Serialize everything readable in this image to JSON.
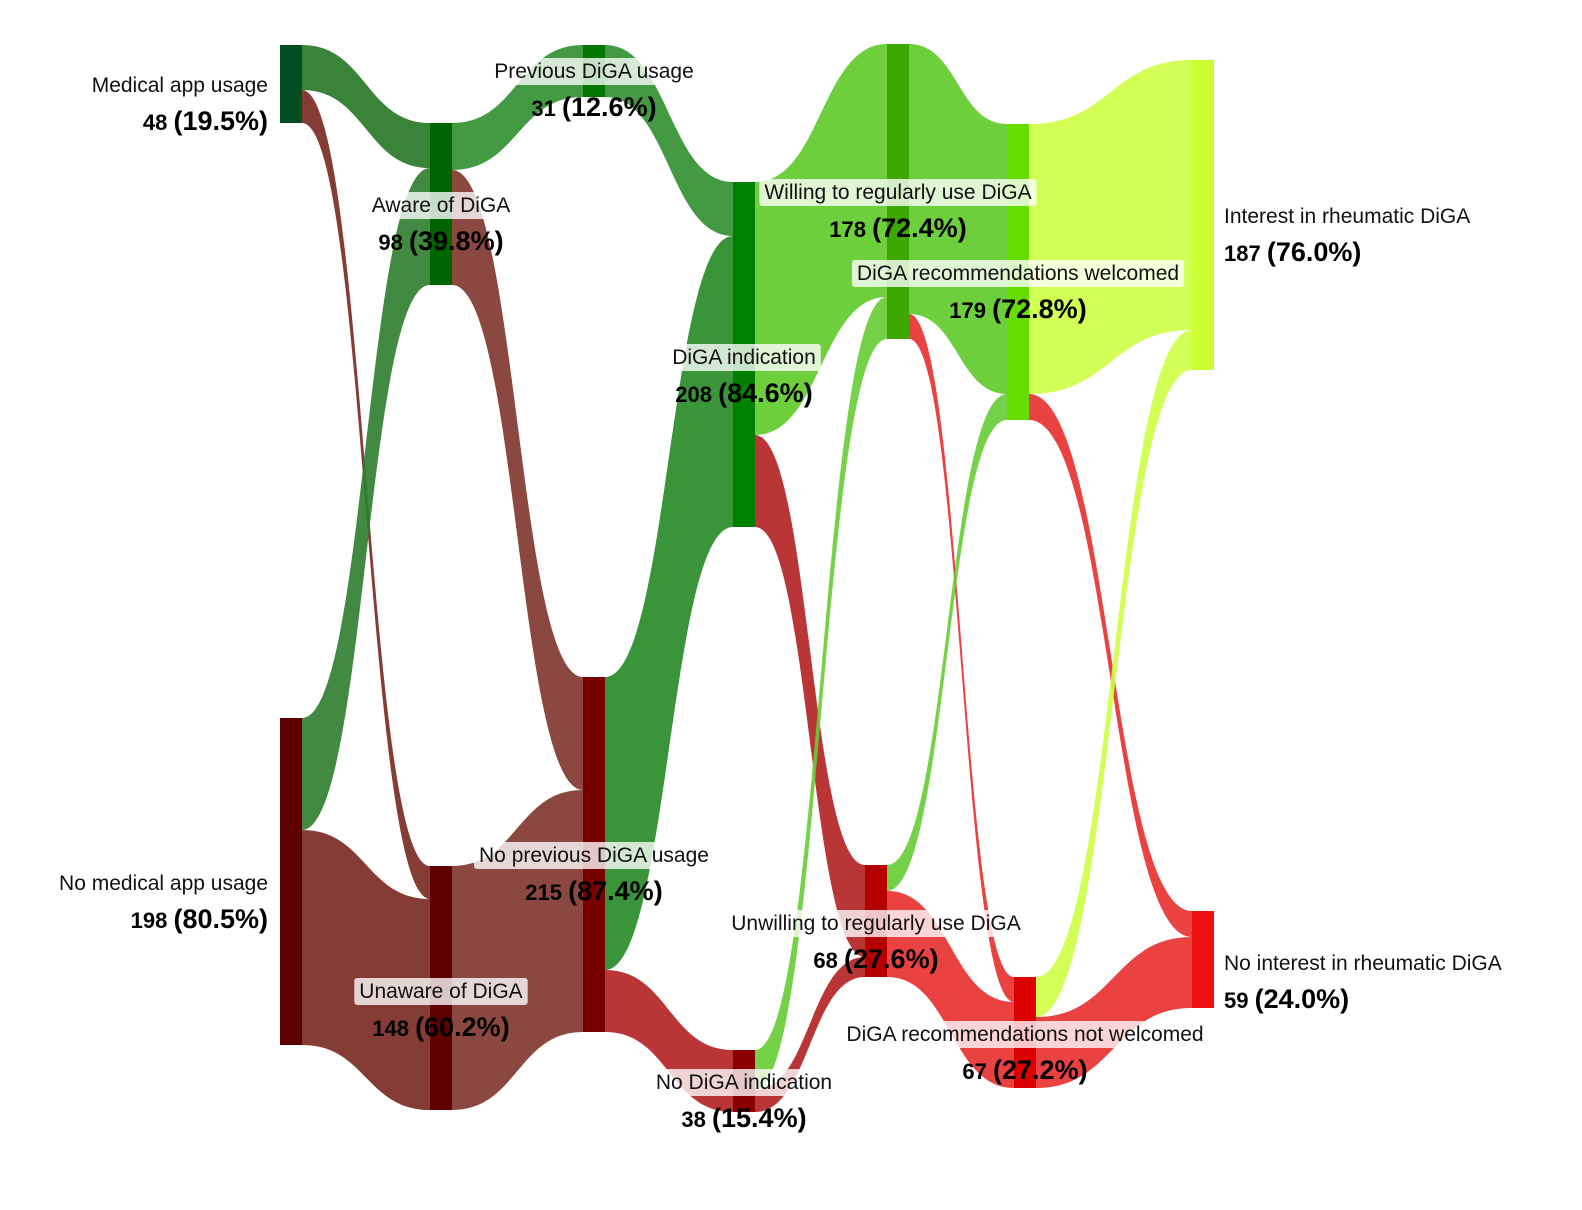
{
  "nodes": [
    {
      "id": "medical_app_usage",
      "label": "Medical app usage",
      "count": "48",
      "percent": "(19.5%)",
      "color": "#004d24"
    },
    {
      "id": "no_medical_app_usage",
      "label": "No medical app usage",
      "count": "198",
      "percent": "(80.5%)",
      "color": "#5e0000"
    },
    {
      "id": "aware_of_diga",
      "label": "Aware of DiGA",
      "count": "98",
      "percent": "(39.8%)",
      "color": "#006400"
    },
    {
      "id": "unaware_of_diga",
      "label": "Unaware of DiGA",
      "count": "148",
      "percent": "(60.2%)",
      "color": "#5e0000"
    },
    {
      "id": "previous_diga_usage",
      "label": "Previous DiGA usage",
      "count": "31",
      "percent": "(12.6%)",
      "color": "#007800"
    },
    {
      "id": "no_previous_diga_usage",
      "label": "No previous DiGA usage",
      "count": "215",
      "percent": "(87.4%)",
      "color": "#780000"
    },
    {
      "id": "diga_indication",
      "label": "DiGA indication",
      "count": "208",
      "percent": "(84.6%)",
      "color": "#008000"
    },
    {
      "id": "no_diga_indication",
      "label": "No DiGA indication",
      "count": "38",
      "percent": "(15.4%)",
      "color": "#8a0000"
    },
    {
      "id": "willing_regular_use",
      "label": "Willing to regularly use DiGA",
      "count": "178",
      "percent": "(72.4%)",
      "color": "#3ca800"
    },
    {
      "id": "unwilling_regular_use",
      "label": "Unwilling to regularly use DiGA",
      "count": "68",
      "percent": "(27.6%)",
      "color": "#b40000"
    },
    {
      "id": "recommendations_welcomed",
      "label": "DiGA recommendations welcomed",
      "count": "179",
      "percent": "(72.8%)",
      "color": "#66dd00"
    },
    {
      "id": "recommendations_not_welcomed",
      "label": "DiGA recommendations not welcomed",
      "count": "67",
      "percent": "(27.2%)",
      "color": "#dd0000"
    },
    {
      "id": "interest_rheumatic_diga",
      "label": "Interest in rheumatic DiGA",
      "count": "187",
      "percent": "(76.0%)",
      "color": "#ccff33"
    },
    {
      "id": "no_interest_rheumatic_diga",
      "label": "No interest in rheumatic DiGA",
      "count": "59",
      "percent": "(24.0%)",
      "color": "#ee1111"
    }
  ],
  "link_colors": {
    "dark_green": "#2e7d2e",
    "dark_red": "#6e1a12",
    "green": "#2f8f2f",
    "red": "#b32020",
    "light_green": "#66cc33",
    "bright_red": "#e82c2c",
    "lime": "#ccff44"
  }
}
